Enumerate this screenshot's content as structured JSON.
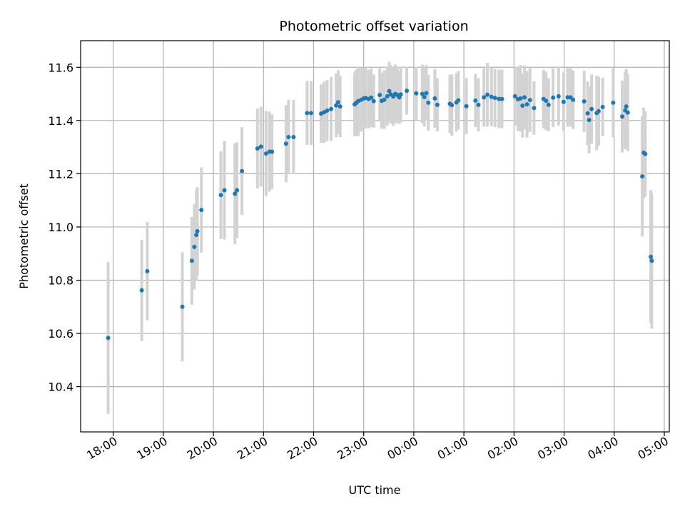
{
  "chart_data": {
    "type": "scatter",
    "title": "Photometric offset variation",
    "xlabel": "UTC time",
    "ylabel": "Photometric offset",
    "grid": true,
    "x_unit": "hours after 18:00 UTC",
    "xlim": [
      -0.65,
      11.1
    ],
    "ylim": [
      10.23,
      11.7
    ],
    "x_ticks": [
      {
        "value": 0,
        "label": "18:00"
      },
      {
        "value": 1,
        "label": "19:00"
      },
      {
        "value": 2,
        "label": "20:00"
      },
      {
        "value": 3,
        "label": "21:00"
      },
      {
        "value": 4,
        "label": "22:00"
      },
      {
        "value": 5,
        "label": "23:00"
      },
      {
        "value": 6,
        "label": "00:00"
      },
      {
        "value": 7,
        "label": "01:00"
      },
      {
        "value": 8,
        "label": "02:00"
      },
      {
        "value": 9,
        "label": "03:00"
      },
      {
        "value": 10,
        "label": "04:00"
      },
      {
        "value": 11,
        "label": "05:00"
      }
    ],
    "y_ticks": [
      {
        "value": 10.4,
        "label": "10.4"
      },
      {
        "value": 10.6,
        "label": "10.6"
      },
      {
        "value": 10.8,
        "label": "10.8"
      },
      {
        "value": 11.0,
        "label": "11.0"
      },
      {
        "value": 11.2,
        "label": "11.2"
      },
      {
        "value": 11.4,
        "label": "11.4"
      },
      {
        "value": 11.6,
        "label": "11.6"
      }
    ],
    "colors": {
      "point": "#1f77b4",
      "errorbar": "#d3d3d3",
      "grid": "#b0b0b0"
    },
    "series": [
      {
        "points": [
          [
            -0.1,
            10.583,
            0.285
          ],
          [
            0.57,
            10.762,
            0.19
          ],
          [
            0.68,
            10.834,
            0.185
          ],
          [
            1.38,
            10.7,
            0.205
          ],
          [
            1.57,
            10.873,
            0.165
          ],
          [
            1.62,
            10.925,
            0.16
          ],
          [
            1.66,
            10.97,
            0.17
          ],
          [
            1.68,
            10.984,
            0.165
          ],
          [
            1.76,
            11.064,
            0.16
          ],
          [
            2.15,
            11.12,
            0.165
          ],
          [
            2.22,
            11.138,
            0.185
          ],
          [
            2.43,
            11.125,
            0.19
          ],
          [
            2.47,
            11.138,
            0.18
          ],
          [
            2.57,
            11.21,
            0.165
          ],
          [
            2.88,
            11.295,
            0.15
          ],
          [
            2.95,
            11.302,
            0.15
          ],
          [
            3.05,
            11.276,
            0.16
          ],
          [
            3.12,
            11.283,
            0.15
          ],
          [
            3.17,
            11.283,
            0.14
          ],
          [
            3.45,
            11.313,
            0.145
          ],
          [
            3.5,
            11.338,
            0.14
          ],
          [
            3.6,
            11.338,
            0.14
          ],
          [
            3.87,
            11.428,
            0.12
          ],
          [
            3.95,
            11.428,
            0.12
          ],
          [
            4.15,
            11.426,
            0.11
          ],
          [
            4.21,
            11.431,
            0.115
          ],
          [
            4.27,
            11.437,
            0.115
          ],
          [
            4.35,
            11.443,
            0.12
          ],
          [
            4.45,
            11.457,
            0.12
          ],
          [
            4.49,
            11.469,
            0.12
          ],
          [
            4.53,
            11.453,
            0.115
          ],
          [
            4.82,
            11.461,
            0.12
          ],
          [
            4.85,
            11.466,
            0.125
          ],
          [
            4.89,
            11.473,
            0.13
          ],
          [
            4.95,
            11.478,
            0.12
          ],
          [
            5.0,
            11.483,
            0.115
          ],
          [
            5.04,
            11.485,
            0.115
          ],
          [
            5.1,
            11.481,
            0.11
          ],
          [
            5.15,
            11.486,
            0.11
          ],
          [
            5.2,
            11.473,
            0.1
          ],
          [
            5.32,
            11.496,
            0.1
          ],
          [
            5.36,
            11.474,
            0.105
          ],
          [
            5.41,
            11.478,
            0.11
          ],
          [
            5.47,
            11.491,
            0.11
          ],
          [
            5.51,
            11.511,
            0.11
          ],
          [
            5.54,
            11.498,
            0.11
          ],
          [
            5.59,
            11.49,
            0.11
          ],
          [
            5.63,
            11.5,
            0.11
          ],
          [
            5.67,
            11.496,
            0.105
          ],
          [
            5.71,
            11.487,
            0.1
          ],
          [
            5.74,
            11.498,
            0.105
          ],
          [
            5.86,
            11.512,
            0.09
          ],
          [
            6.05,
            11.502,
            0.1
          ],
          [
            6.17,
            11.5,
            0.11
          ],
          [
            6.21,
            11.488,
            0.11
          ],
          [
            6.25,
            11.503,
            0.105
          ],
          [
            6.29,
            11.467,
            0.105
          ],
          [
            6.42,
            11.483,
            0.11
          ],
          [
            6.47,
            11.459,
            0.1
          ],
          [
            6.72,
            11.463,
            0.11
          ],
          [
            6.76,
            11.458,
            0.115
          ],
          [
            6.85,
            11.468,
            0.11
          ],
          [
            6.89,
            11.476,
            0.11
          ],
          [
            7.05,
            11.454,
            0.105
          ],
          [
            7.23,
            11.475,
            0.1
          ],
          [
            7.29,
            11.459,
            0.1
          ],
          [
            7.4,
            11.487,
            0.11
          ],
          [
            7.47,
            11.497,
            0.12
          ],
          [
            7.55,
            11.489,
            0.11
          ],
          [
            7.62,
            11.485,
            0.11
          ],
          [
            7.7,
            11.481,
            0.11
          ],
          [
            7.76,
            11.481,
            0.11
          ],
          [
            8.02,
            11.491,
            0.11
          ],
          [
            8.08,
            11.48,
            0.12
          ],
          [
            8.13,
            11.483,
            0.125
          ],
          [
            8.17,
            11.456,
            0.12
          ],
          [
            8.21,
            11.487,
            0.12
          ],
          [
            8.26,
            11.461,
            0.125
          ],
          [
            8.32,
            11.477,
            0.12
          ],
          [
            8.4,
            11.447,
            0.1
          ],
          [
            8.59,
            11.481,
            0.11
          ],
          [
            8.64,
            11.474,
            0.11
          ],
          [
            8.69,
            11.459,
            0.1
          ],
          [
            8.78,
            11.486,
            0.11
          ],
          [
            8.89,
            11.491,
            0.11
          ],
          [
            8.99,
            11.47,
            0.11
          ],
          [
            9.07,
            11.487,
            0.11
          ],
          [
            9.13,
            11.487,
            0.11
          ],
          [
            9.18,
            11.478,
            0.11
          ],
          [
            9.4,
            11.472,
            0.115
          ],
          [
            9.47,
            11.427,
            0.12
          ],
          [
            9.5,
            11.402,
            0.125
          ],
          [
            9.55,
            11.443,
            0.13
          ],
          [
            9.65,
            11.428,
            0.14
          ],
          [
            9.69,
            11.435,
            0.13
          ],
          [
            9.77,
            11.451,
            0.11
          ],
          [
            9.98,
            11.467,
            0.13
          ],
          [
            10.16,
            11.415,
            0.135
          ],
          [
            10.22,
            11.438,
            0.145
          ],
          [
            10.24,
            11.453,
            0.14
          ],
          [
            10.27,
            11.43,
            0.145
          ],
          [
            10.56,
            11.19,
            0.225
          ],
          [
            10.59,
            11.279,
            0.17
          ],
          [
            10.62,
            11.274,
            0.16
          ],
          [
            10.73,
            10.888,
            0.25
          ],
          [
            10.75,
            10.873,
            0.255
          ]
        ]
      }
    ]
  }
}
